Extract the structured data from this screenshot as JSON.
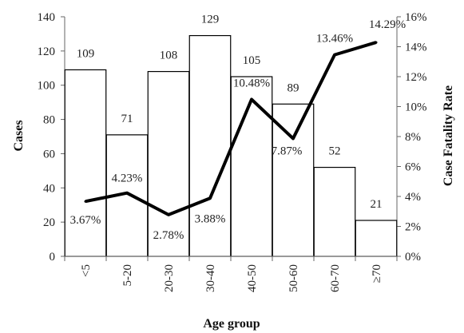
{
  "chart_data": {
    "type": "bar",
    "categories": [
      "<5",
      "5-20",
      "20-30",
      "30-40",
      "40-50",
      "50-60",
      "60-70",
      "≥70"
    ],
    "series": [
      {
        "name": "Cases",
        "type": "bar",
        "axis": "left",
        "values": [
          109,
          71,
          108,
          129,
          105,
          89,
          52,
          21
        ],
        "labels": [
          "109",
          "71",
          "108",
          "129",
          "105",
          "89",
          "52",
          "21"
        ]
      },
      {
        "name": "Case Fatality Rate",
        "type": "line",
        "axis": "right",
        "values": [
          3.67,
          4.23,
          2.78,
          3.88,
          10.48,
          7.87,
          13.46,
          14.29
        ],
        "labels": [
          "3.67%",
          "4.23%",
          "2.78%",
          "3.88%",
          "10.48%",
          "7.87%",
          "13.46%",
          "14.29%"
        ]
      }
    ],
    "xlabel": "Age group",
    "ylabel": "Cases",
    "y2label": "Case Fatality Rate",
    "ylim": [
      0,
      140
    ],
    "y2lim": [
      0,
      16
    ],
    "yticks": [
      "0",
      "20",
      "40",
      "60",
      "80",
      "100",
      "120",
      "140"
    ],
    "y2ticks": [
      "0%",
      "2%",
      "4%",
      "6%",
      "8%",
      "10%",
      "12%",
      "14%",
      "16%"
    ],
    "grid": false,
    "legend": "none",
    "colors": {
      "bar_fill": "#ffffff",
      "bar_stroke": "#000000",
      "line": "#000000"
    }
  }
}
